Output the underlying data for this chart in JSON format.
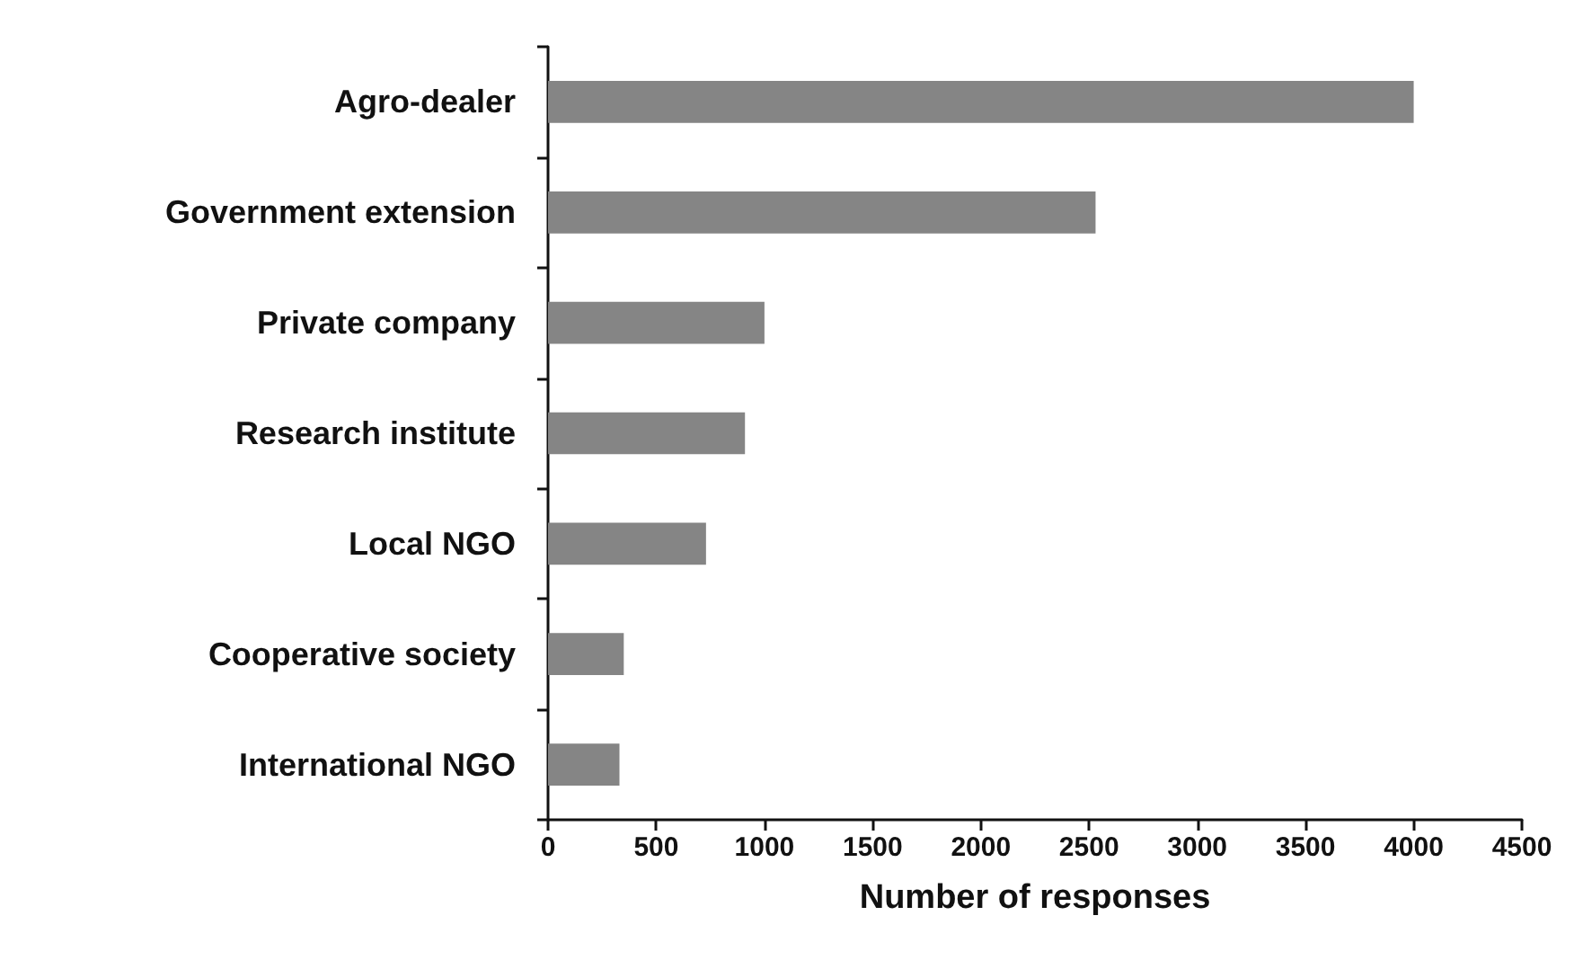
{
  "chart_data": {
    "type": "bar",
    "orientation": "horizontal",
    "xlabel": "Number of responses",
    "categories": [
      "Agro-dealer",
      "Government extension",
      "Private company",
      "Research institute",
      "Local NGO",
      "Cooperative society",
      "International NGO"
    ],
    "values": [
      4000,
      2530,
      1000,
      910,
      730,
      350,
      330
    ],
    "color": "#858585",
    "xlim": [
      0,
      4500
    ],
    "xticks": [
      0,
      500,
      1000,
      1500,
      2000,
      2500,
      3000,
      3500,
      4000,
      4500
    ],
    "grid": false
  }
}
